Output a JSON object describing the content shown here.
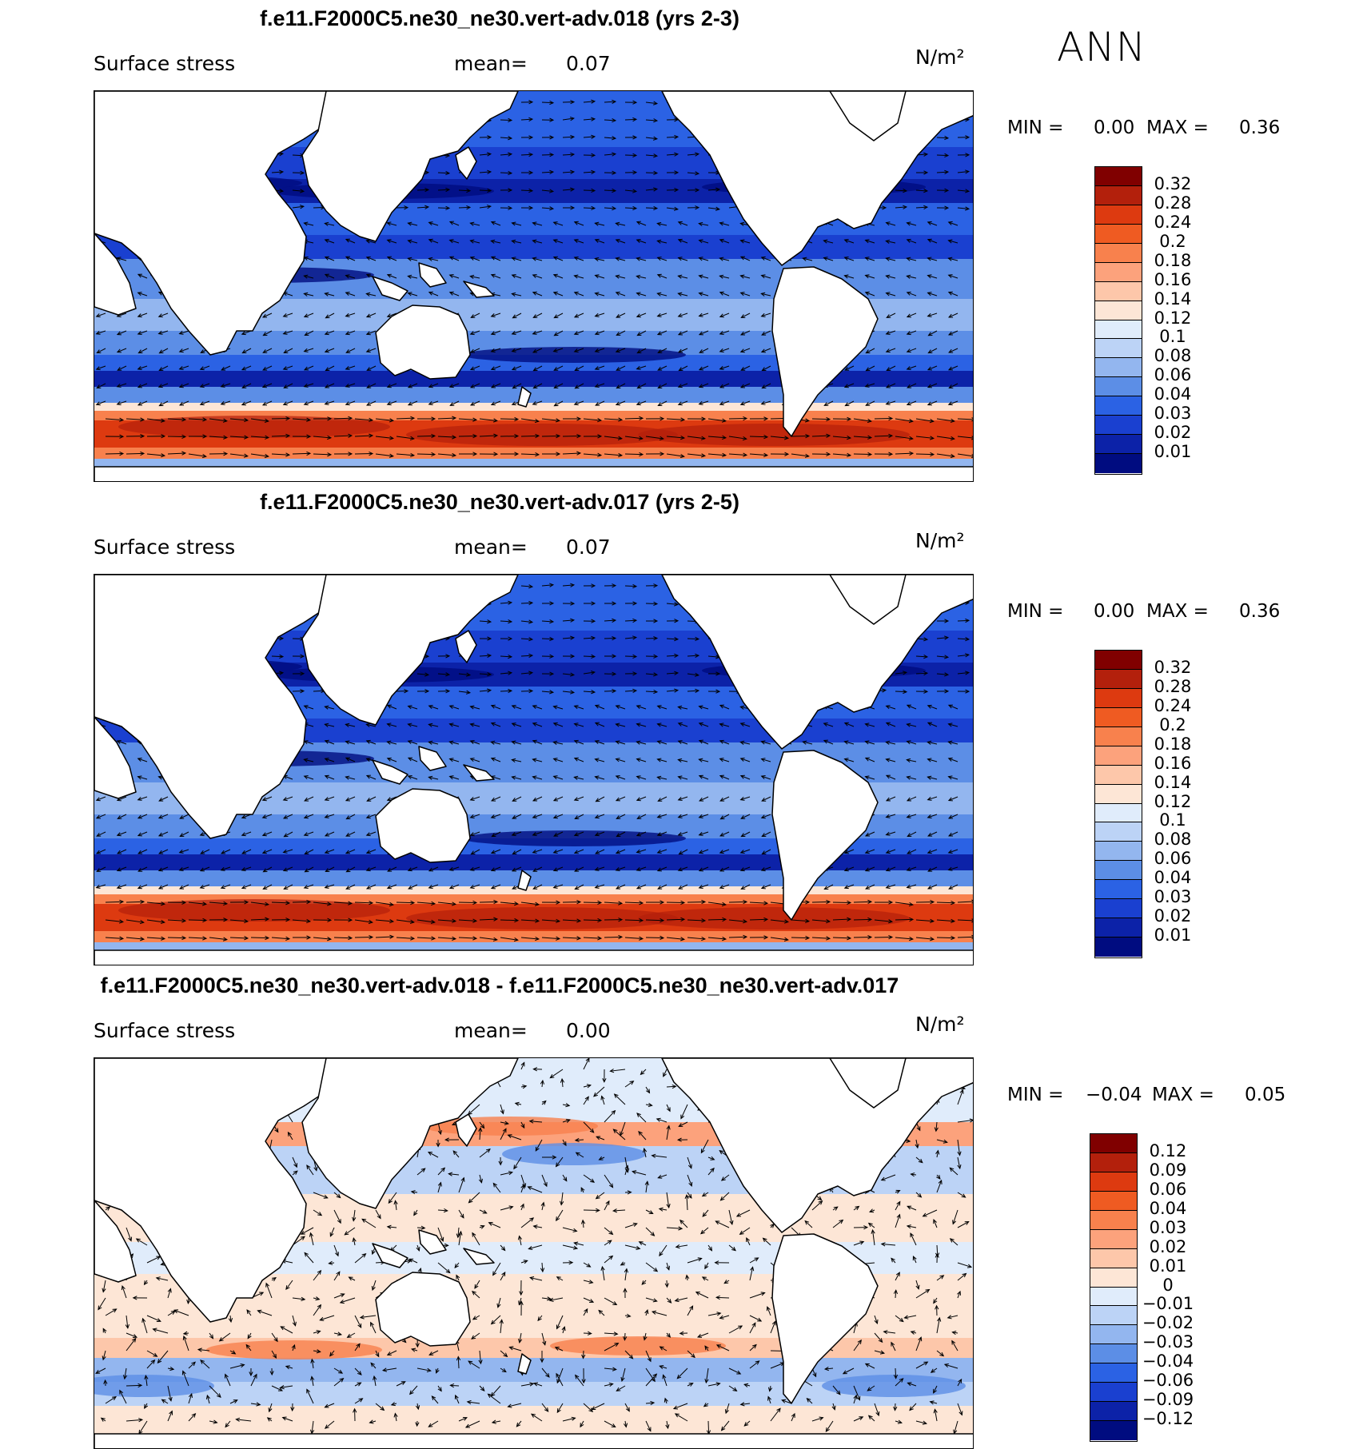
{
  "season": "ANN",
  "panels": [
    {
      "title": "f.e11.F2000C5.ne30_ne30.vert-adv.018 (yrs 2-3)",
      "variable": "Surface stress",
      "mean_label": "mean=",
      "mean_value": "0.07",
      "units": "N/m²",
      "min_label": "MIN =",
      "min_value": "0.00",
      "max_label": "MAX =",
      "max_value": "0.36",
      "kind": "absolute",
      "colorbar": {
        "levels": [
          "0.32",
          "0.28",
          "0.24",
          "0.2",
          "0.18",
          "0.16",
          "0.14",
          "0.12",
          "0.1",
          "0.08",
          "0.06",
          "0.04",
          "0.03",
          "0.02",
          "0.01"
        ],
        "colors": [
          "#800000",
          "#b3200c",
          "#dd3a10",
          "#ef5b22",
          "#f8814d",
          "#fca27c",
          "#fdc7aa",
          "#fde6d6",
          "#e0ecfb",
          "#bcd3f6",
          "#93b6ef",
          "#5c8ee6",
          "#2b62e4",
          "#1a40d0",
          "#0c22a8",
          "#000c80"
        ]
      }
    },
    {
      "title": "f.e11.F2000C5.ne30_ne30.vert-adv.017 (yrs 2-5)",
      "variable": "Surface stress",
      "mean_label": "mean=",
      "mean_value": "0.07",
      "units": "N/m²",
      "min_label": "MIN =",
      "min_value": "0.00",
      "max_label": "MAX =",
      "max_value": "0.36",
      "kind": "absolute",
      "colorbar": {
        "levels": [
          "0.32",
          "0.28",
          "0.24",
          "0.2",
          "0.18",
          "0.16",
          "0.14",
          "0.12",
          "0.1",
          "0.08",
          "0.06",
          "0.04",
          "0.03",
          "0.02",
          "0.01"
        ],
        "colors": [
          "#800000",
          "#b3200c",
          "#dd3a10",
          "#ef5b22",
          "#f8814d",
          "#fca27c",
          "#fdc7aa",
          "#fde6d6",
          "#e0ecfb",
          "#bcd3f6",
          "#93b6ef",
          "#5c8ee6",
          "#2b62e4",
          "#1a40d0",
          "#0c22a8",
          "#000c80"
        ]
      }
    },
    {
      "title": "f.e11.F2000C5.ne30_ne30.vert-adv.018 - f.e11.F2000C5.ne30_ne30.vert-adv.017",
      "variable": "Surface stress",
      "mean_label": "mean=",
      "mean_value": "0.00",
      "units": "N/m²",
      "min_label": "MIN =",
      "min_value": "−0.04",
      "max_label": "MAX =",
      "max_value": "0.05",
      "kind": "difference",
      "colorbar": {
        "levels": [
          "0.12",
          "0.09",
          "0.06",
          "0.04",
          "0.03",
          "0.02",
          "0.01",
          "0",
          "−0.01",
          "−0.02",
          "−0.03",
          "−0.04",
          "−0.06",
          "−0.09",
          "−0.12"
        ],
        "colors": [
          "#800000",
          "#b3200c",
          "#dd3a10",
          "#ef5b22",
          "#f8814d",
          "#fca27c",
          "#fdc7aa",
          "#fde6d6",
          "#e0ecfb",
          "#bcd3f6",
          "#93b6ef",
          "#5c8ee6",
          "#2b62e4",
          "#1a40d0",
          "#0c22a8",
          "#000c80"
        ]
      }
    }
  ]
}
